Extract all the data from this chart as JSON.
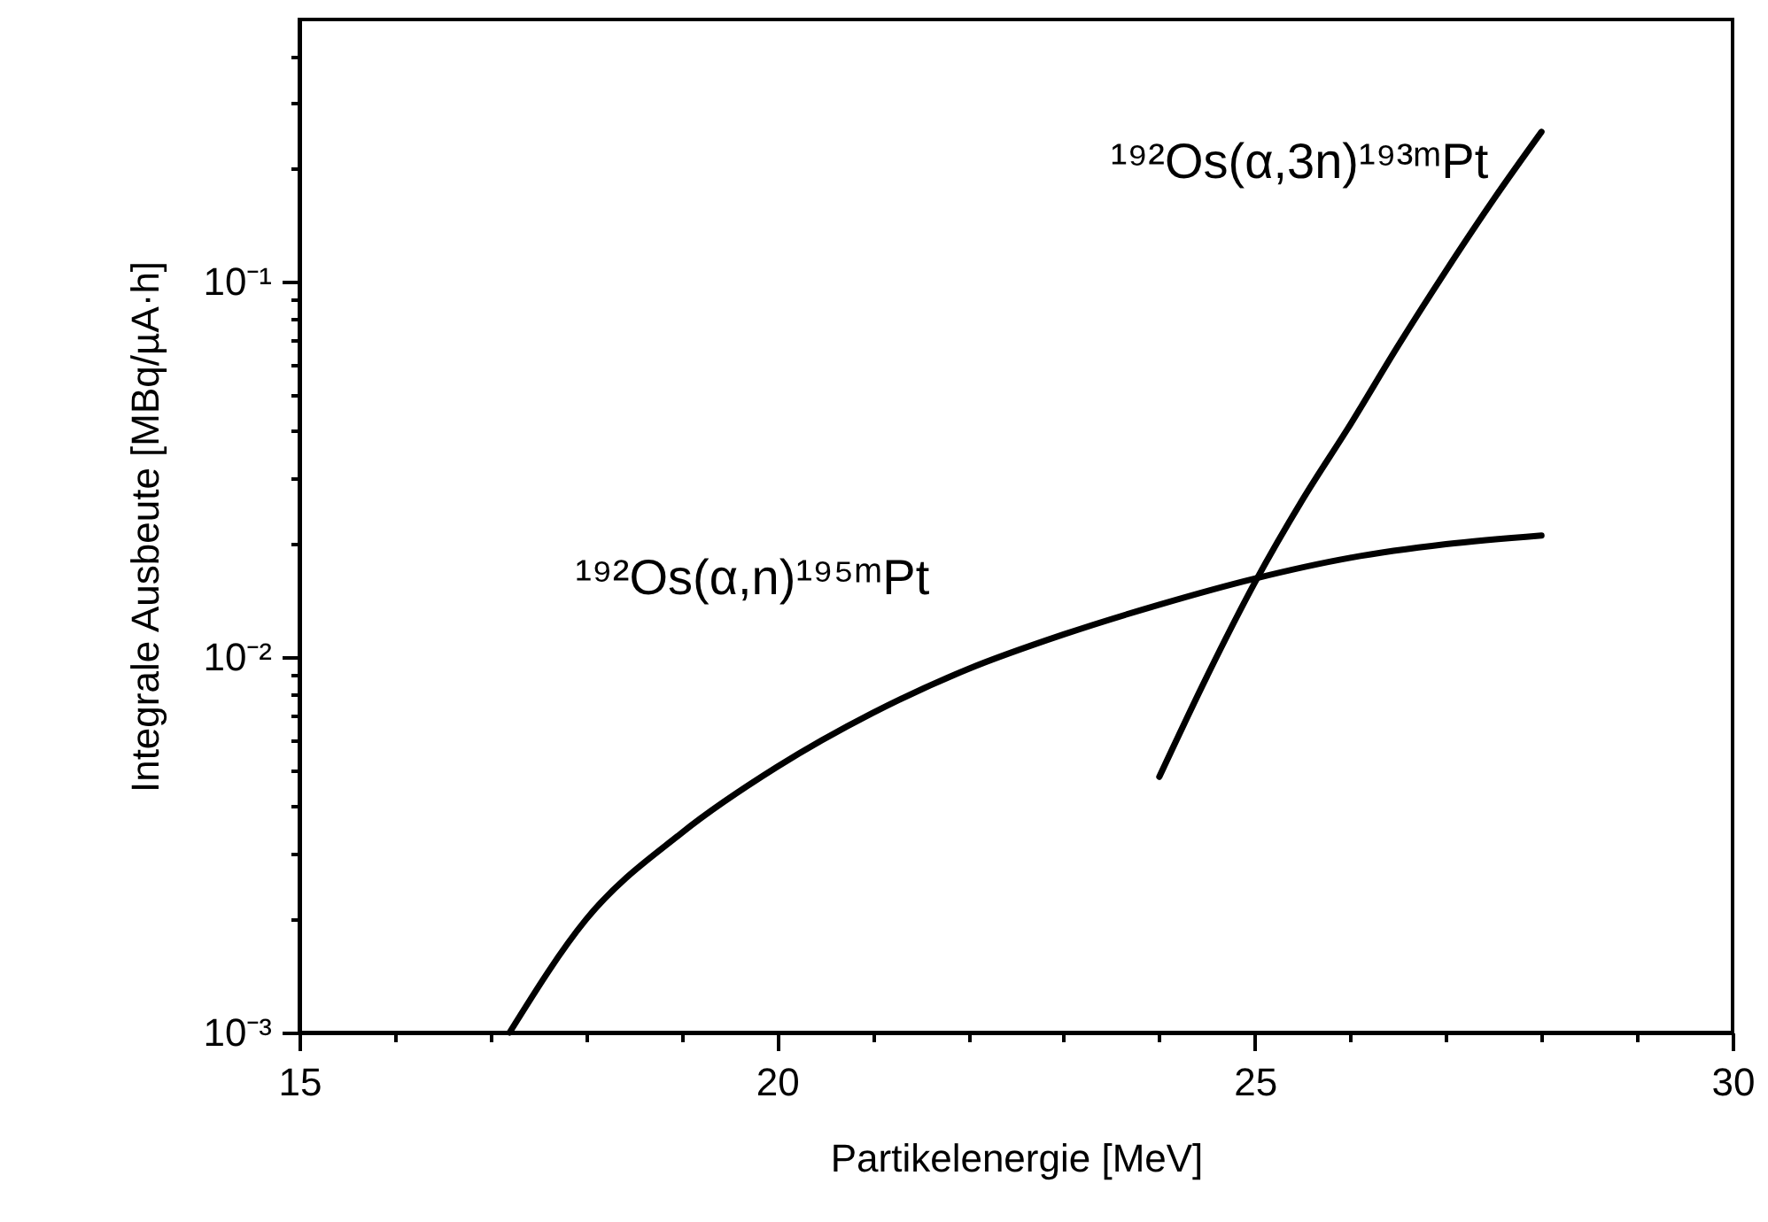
{
  "chart_data": {
    "type": "line",
    "xlabel": "Partikelenergie [MeV]",
    "ylabel": "Integrale Ausbeute [MBq/µA·h]",
    "log": "y",
    "xlim": [
      15,
      30
    ],
    "ylim": [
      0.001,
      0.5
    ],
    "xticks": [
      15,
      {
        "value": 16,
        "label": null
      },
      {
        "value": 17,
        "label": null
      },
      {
        "value": 18,
        "label": null
      },
      {
        "value": 19,
        "label": null
      },
      20,
      {
        "value": 21,
        "label": null
      },
      {
        "value": 22,
        "label": null
      },
      {
        "value": 23,
        "label": null
      },
      {
        "value": 24,
        "label": null
      },
      25,
      {
        "value": 26,
        "label": null
      },
      {
        "value": 27,
        "label": null
      },
      {
        "value": 28,
        "label": null
      },
      {
        "value": 29,
        "label": null
      },
      30
    ],
    "yticks": [
      {
        "value": 0.001,
        "label": "10⁻³"
      },
      {
        "value": 0.002,
        "label": null
      },
      {
        "value": 0.003,
        "label": null
      },
      {
        "value": 0.004,
        "label": null
      },
      {
        "value": 0.005,
        "label": null
      },
      {
        "value": 0.006,
        "label": null
      },
      {
        "value": 0.007,
        "label": null
      },
      {
        "value": 0.008,
        "label": null
      },
      {
        "value": 0.009,
        "label": null
      },
      {
        "value": 0.01,
        "label": "10⁻²"
      },
      {
        "value": 0.02,
        "label": null
      },
      {
        "value": 0.03,
        "label": null
      },
      {
        "value": 0.04,
        "label": null
      },
      {
        "value": 0.05,
        "label": null
      },
      {
        "value": 0.06,
        "label": null
      },
      {
        "value": 0.07,
        "label": null
      },
      {
        "value": 0.08,
        "label": null
      },
      {
        "value": 0.09,
        "label": null
      },
      {
        "value": 0.1,
        "label": "10⁻¹"
      },
      {
        "value": 0.2,
        "label": null
      },
      {
        "value": 0.3,
        "label": null
      },
      {
        "value": 0.4,
        "label": null
      }
    ],
    "grid": false,
    "marker": "none",
    "line_style": "solid",
    "series": [
      {
        "name": "¹⁹²Os(α,n)¹⁹⁵ᵐPt",
        "color": "#000000",
        "x": [
          17.2,
          18,
          19,
          20,
          21,
          22,
          23,
          24,
          25,
          26,
          27,
          28
        ],
        "values": [
          0.001,
          0.002,
          0.0034,
          0.0051,
          0.0071,
          0.0093,
          0.0115,
          0.0138,
          0.0162,
          0.0184,
          0.02,
          0.0211
        ]
      },
      {
        "name": "¹⁹²Os(α,3n)¹⁹³ᵐPt",
        "color": "#000000",
        "x": [
          24,
          24.5,
          25,
          25.5,
          26,
          26.5,
          27,
          27.5,
          28
        ],
        "values": [
          0.0048,
          0.0089,
          0.0158,
          0.0263,
          0.0417,
          0.0676,
          0.107,
          0.166,
          0.251
        ]
      }
    ]
  }
}
